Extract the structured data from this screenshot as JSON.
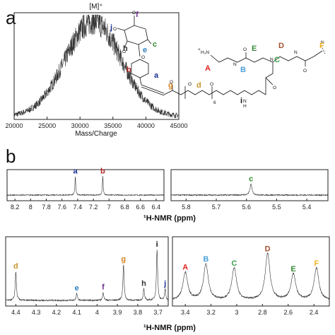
{
  "panel_labels": {
    "a": "a",
    "b": "b"
  },
  "structure": {
    "letters": [
      {
        "label": "f",
        "color": "#6a2c8a"
      },
      {
        "label": "j",
        "color": "#1a2f8f"
      },
      {
        "label": "e",
        "color": "#2c7fbf"
      },
      {
        "label": "c",
        "color": "#2e8b2e"
      },
      {
        "label": "h",
        "color": "#333333"
      },
      {
        "label": "i",
        "color": "#111111"
      },
      {
        "label": "b",
        "color": "#b22222"
      },
      {
        "label": "a",
        "color": "#1a2f8f"
      },
      {
        "label": "g",
        "color": "#d2821f"
      },
      {
        "label": "d",
        "color": "#c8962a"
      },
      {
        "label": "A",
        "color": "#e0241f"
      },
      {
        "label": "B",
        "color": "#4aa0d8"
      },
      {
        "label": "C",
        "color": "#3aa04a"
      },
      {
        "label": "D",
        "color": "#a0522d"
      },
      {
        "label": "E",
        "color": "#3a8a3a"
      },
      {
        "label": "F",
        "color": "#f2b21e"
      }
    ],
    "text": {
      "amine": "H₃N",
      "charge": "+",
      "sub6": "6",
      "N": "N",
      "O": "O",
      "H": "H"
    }
  },
  "chart_data": [
    {
      "type": "line",
      "id": "mass-spectrum",
      "annotation": "[M]⁺",
      "xlabel": "Mass/Charge",
      "xlim": [
        20000,
        45000
      ],
      "xticks": [
        20000,
        25000,
        30000,
        35000,
        40000,
        45000
      ],
      "peak_center": 32000,
      "peak_width": 4200
    },
    {
      "type": "line",
      "id": "nmr-aromatic",
      "xlim": [
        8.3,
        6.3
      ],
      "xticks": [
        8.2,
        8.0,
        7.8,
        7.6,
        7.4,
        7.2,
        7.0,
        6.8,
        6.6,
        6.4
      ],
      "peaks": [
        {
          "label": "a",
          "shift": 7.43,
          "height": 0.95,
          "color": "#1a2f8f"
        },
        {
          "label": "b",
          "shift": 7.08,
          "height": 0.95,
          "color": "#b22222"
        }
      ]
    },
    {
      "type": "line",
      "id": "nmr-anomeric",
      "xlim": [
        5.85,
        5.33
      ],
      "xticks": [
        5.8,
        5.7,
        5.6,
        5.5,
        5.4
      ],
      "peaks": [
        {
          "label": "c",
          "shift": 5.585,
          "height": 0.55,
          "color": "#2e8b2e"
        }
      ]
    },
    {
      "type": "line",
      "id": "nmr-sugar-peg",
      "xlabel": "¹H-NMR (ppm)",
      "xlim": [
        4.45,
        3.65
      ],
      "xticks": [
        4.4,
        4.3,
        4.2,
        4.1,
        4.0,
        3.9,
        3.8,
        3.7
      ],
      "peaks": [
        {
          "label": "d",
          "shift": 4.4,
          "height": 0.5,
          "color": "#c8962a"
        },
        {
          "label": "e",
          "shift": 4.1,
          "height": 0.12,
          "color": "#2c7fbf"
        },
        {
          "label": "f",
          "shift": 3.97,
          "height": 0.14,
          "color": "#6a2c8a"
        },
        {
          "label": "g",
          "shift": 3.87,
          "height": 0.62,
          "color": "#d2821f"
        },
        {
          "label": "h",
          "shift": 3.77,
          "height": 0.2,
          "color": "#333333"
        },
        {
          "label": "i",
          "shift": 3.705,
          "height": 0.88,
          "color": "#111111"
        },
        {
          "label": "j",
          "shift": 3.665,
          "height": 0.2,
          "color": "#1a2f8f"
        }
      ]
    },
    {
      "type": "line",
      "id": "nmr-dendrimer",
      "xlabel": "¹H-NMR (ppm)",
      "xlim": [
        3.5,
        2.28
      ],
      "xticks": [
        3.4,
        3.2,
        3.0,
        2.8,
        2.6,
        2.4
      ],
      "peaks": [
        {
          "label": "A",
          "shift": 3.4,
          "height": 0.48,
          "color": "#e0241f"
        },
        {
          "label": "B",
          "shift": 3.24,
          "height": 0.62,
          "color": "#4aa0d8"
        },
        {
          "label": "C",
          "shift": 3.02,
          "height": 0.55,
          "color": "#3aa04a"
        },
        {
          "label": "D",
          "shift": 2.76,
          "height": 0.8,
          "color": "#a0522d"
        },
        {
          "label": "E",
          "shift": 2.56,
          "height": 0.45,
          "color": "#3a8a3a"
        },
        {
          "label": "F",
          "shift": 2.38,
          "height": 0.55,
          "color": "#f2b21e"
        }
      ]
    }
  ],
  "colors": {
    "axis": "#222222",
    "trace": "#333333"
  }
}
